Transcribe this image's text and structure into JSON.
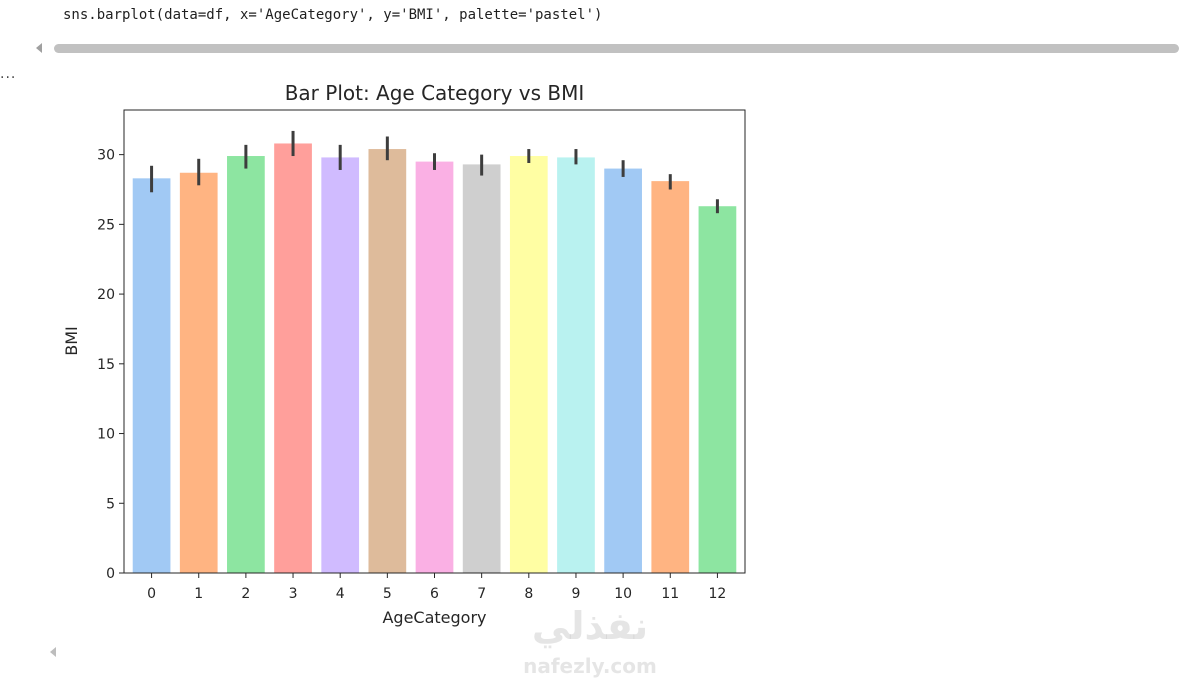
{
  "cell": {
    "code": "sns.barplot(data=df, x='AgeCategory', y='BMI', palette='pastel')",
    "output_marker": "..."
  },
  "watermark": {
    "arabic": "نفذلي",
    "latin": "nafezly.com"
  },
  "chart_data": {
    "type": "bar",
    "title": "Bar Plot: Age Category vs BMI",
    "xlabel": "AgeCategory",
    "ylabel": "BMI",
    "ylim": [
      0,
      33.2
    ],
    "yticks": [
      0,
      5,
      10,
      15,
      20,
      25,
      30
    ],
    "categories": [
      "0",
      "1",
      "2",
      "3",
      "4",
      "5",
      "6",
      "7",
      "8",
      "9",
      "10",
      "11",
      "12"
    ],
    "values": [
      28.3,
      28.7,
      29.9,
      30.8,
      29.8,
      30.4,
      29.5,
      29.3,
      29.9,
      29.8,
      29.0,
      28.1,
      26.3
    ],
    "error_low": [
      27.3,
      27.8,
      29.0,
      29.9,
      28.9,
      29.6,
      28.9,
      28.5,
      29.4,
      29.3,
      28.4,
      27.5,
      25.8
    ],
    "error_high": [
      29.2,
      29.7,
      30.7,
      31.7,
      30.7,
      31.3,
      30.1,
      30.0,
      30.4,
      30.4,
      29.6,
      28.6,
      26.8
    ],
    "colors": [
      "#a1c9f4",
      "#ffb482",
      "#8de5a1",
      "#ff9f9b",
      "#d0bbff",
      "#debb9b",
      "#fab0e4",
      "#cfcfcf",
      "#fffea3",
      "#b9f2f0",
      "#a1c9f4",
      "#ffb482",
      "#8de5a1"
    ],
    "grid": false,
    "legend": "none"
  }
}
